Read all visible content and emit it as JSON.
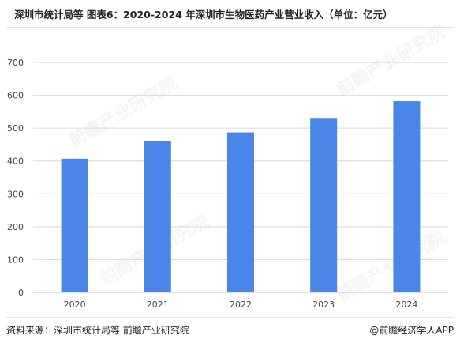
{
  "title": "深圳市统计局等  图表6：2020-2024 年深圳市生物医药产业营业收入（单位：亿元）",
  "source_label": "资料来源：",
  "source_text": "深圳市统计局等 前瞻产业研究院",
  "credit": "@前瞻经济学人APP",
  "watermark": "前瞻产业研究院",
  "colors": {
    "bar": "#4a86e8",
    "grid": "#d9d9d9",
    "axis": "#bfbfbf"
  },
  "chart_data": {
    "type": "bar",
    "title": "深圳市统计局等  图表6：2020-2024 年深圳市生物医药产业营业收入（单位：亿元）",
    "xlabel": "",
    "ylabel": "",
    "categories": [
      "2020",
      "2021",
      "2022",
      "2023",
      "2024"
    ],
    "values": [
      407,
      461,
      487,
      531,
      582
    ],
    "ylim": [
      0,
      700
    ],
    "yticks": [
      0,
      100,
      200,
      300,
      400,
      500,
      600,
      700
    ],
    "grid": true,
    "legend": "none"
  }
}
